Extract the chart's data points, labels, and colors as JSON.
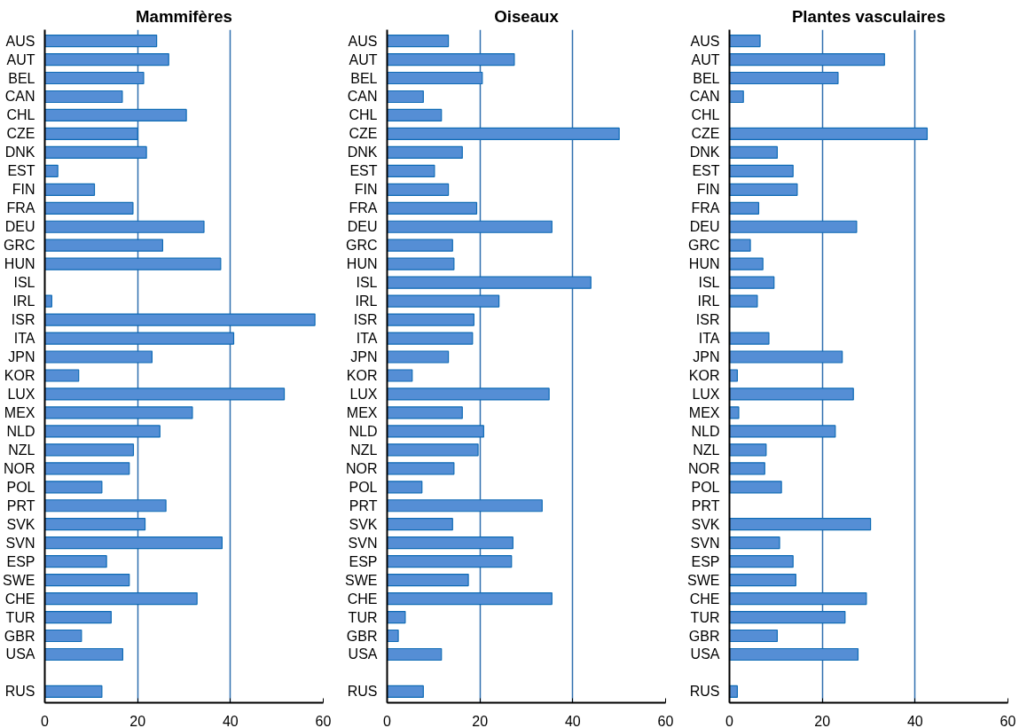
{
  "chart_data": [
    {
      "type": "bar",
      "orientation": "horizontal",
      "title": "Mammifères",
      "color": "#558ed5",
      "xlim": [
        0,
        60
      ],
      "xticks": [
        0,
        20,
        40,
        60
      ],
      "grid": "x",
      "categories": [
        "AUS",
        "AUT",
        "BEL",
        "CAN",
        "CHL",
        "CZE",
        "DNK",
        "EST",
        "FIN",
        "FRA",
        "DEU",
        "GRC",
        "HUN",
        "ISL",
        "IRL",
        "ISR",
        "ITA",
        "JPN",
        "KOR",
        "LUX",
        "MEX",
        "NLD",
        "NZL",
        "NOR",
        "POL",
        "PRT",
        "SVK",
        "SVN",
        "ESP",
        "SWE",
        "CHE",
        "TUR",
        "GBR",
        "USA",
        null,
        "RUS"
      ],
      "values": [
        24.1,
        26.7,
        21.3,
        16.7,
        30.5,
        20,
        21.9,
        2.8,
        10.7,
        19,
        34.3,
        25.4,
        37.9,
        null,
        1.5,
        58.2,
        40.7,
        23.1,
        7.3,
        51.6,
        31.8,
        24.8,
        19.1,
        18.2,
        12.3,
        26.1,
        21.6,
        38.2,
        13.3,
        18.2,
        32.8,
        14.3,
        7.9,
        16.8,
        null,
        12.3
      ]
    },
    {
      "type": "bar",
      "orientation": "horizontal",
      "title": "Oiseaux",
      "color": "#558ed5",
      "xlim": [
        0,
        60
      ],
      "xticks": [
        0,
        20,
        40,
        60
      ],
      "grid": "x",
      "categories": [
        "AUS",
        "AUT",
        "BEL",
        "CAN",
        "CHL",
        "CZE",
        "DNK",
        "EST",
        "FIN",
        "FRA",
        "DEU",
        "GRC",
        "HUN",
        "ISL",
        "IRL",
        "ISR",
        "ITA",
        "JPN",
        "KOR",
        "LUX",
        "MEX",
        "NLD",
        "NZL",
        "NOR",
        "POL",
        "PRT",
        "SVK",
        "SVN",
        "ESP",
        "SWE",
        "CHE",
        "TUR",
        "GBR",
        "USA",
        null,
        "RUS"
      ],
      "values": [
        13.2,
        27.4,
        20.5,
        7.8,
        11.7,
        50,
        16.2,
        10.2,
        13.2,
        19.3,
        35.5,
        14.1,
        14.4,
        43.9,
        24.1,
        18.7,
        18.4,
        13.2,
        5.4,
        34.9,
        16.2,
        20.8,
        19.6,
        14.4,
        7.5,
        33.4,
        14.1,
        27.1,
        26.8,
        17.5,
        35.5,
        3.9,
        2.4,
        11.7,
        null,
        7.8
      ]
    },
    {
      "type": "bar",
      "orientation": "horizontal",
      "title": "Plantes vasculaires",
      "color": "#558ed5",
      "xlim": [
        0,
        60
      ],
      "xticks": [
        0,
        20,
        40,
        60
      ],
      "grid": "x",
      "categories": [
        "AUS",
        "AUT",
        "BEL",
        "CAN",
        "CHL",
        "CZE",
        "DNK",
        "EST",
        "FIN",
        "FRA",
        "DEU",
        "GRC",
        "HUN",
        "ISL",
        "IRL",
        "ISR",
        "ITA",
        "JPN",
        "KOR",
        "LUX",
        "MEX",
        "NLD",
        "NZL",
        "NOR",
        "POL",
        "PRT",
        "SVK",
        "SVN",
        "ESP",
        "SWE",
        "CHE",
        "TUR",
        "GBR",
        "USA",
        null,
        "RUS"
      ],
      "values": [
        6.6,
        33.4,
        23.4,
        3.0,
        null,
        42.6,
        10.3,
        13.7,
        14.6,
        6.3,
        27.4,
        4.5,
        7.2,
        9.6,
        6.0,
        null,
        8.5,
        24.3,
        1.7,
        26.7,
        2.0,
        22.8,
        7.9,
        7.6,
        11.2,
        null,
        30.4,
        10.8,
        13.7,
        14.3,
        29.5,
        24.9,
        10.3,
        27.7,
        null,
        1.7
      ]
    }
  ]
}
